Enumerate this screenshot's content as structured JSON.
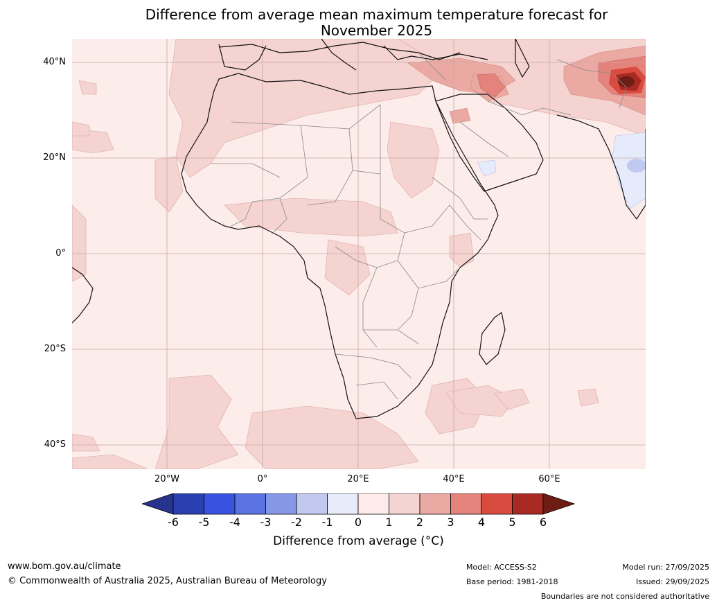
{
  "title": {
    "line1": "Difference from average mean maximum temperature forecast for",
    "line2": "November 2025"
  },
  "map": {
    "region": "Africa and surrounds",
    "lat_labels": [
      "40°N",
      "20°N",
      "0°",
      "20°S",
      "40°S"
    ],
    "lon_labels": [
      "20°W",
      "0°",
      "20°E",
      "40°E",
      "60°E"
    ],
    "colors": {
      "bg_0_1": "#fcecea",
      "c1_2": "#f5d3d0",
      "c2_3": "#eba9a3",
      "c3_4": "#e4837b",
      "c4_5": "#d94b3f",
      "c5_6": "#a92a22",
      "c6_plus": "#6e1d15",
      "cm1_0": "#e6ebfb",
      "cm2_m1": "#c2c9f1"
    }
  },
  "colorbar": {
    "ticks": [
      "-6",
      "-5",
      "-4",
      "-3",
      "-2",
      "-1",
      "0",
      "1",
      "2",
      "3",
      "4",
      "5",
      "6"
    ],
    "segment_colors": [
      "#27338d",
      "#2a3fb0",
      "#3753e0",
      "#5a72e2",
      "#8797e8",
      "#c2c9f1",
      "#e8ebfa",
      "#fcebea",
      "#f5d3d0",
      "#eba9a3",
      "#e4837b",
      "#d94b3f",
      "#a92a22",
      "#6e1d15"
    ],
    "label": "Difference from average (°C)"
  },
  "footer": {
    "website": "www.bom.gov.au/climate",
    "copyright": "© Commonwealth of Australia 2025, Australian Bureau of Meteorology",
    "model": "Model: ACCESS-S2",
    "base_period": "Base period: 1981-2018",
    "model_run": "Model run: 27/09/2025",
    "issued": "Issued: 29/09/2025",
    "disclaimer": "Boundaries are not considered authoritative"
  }
}
